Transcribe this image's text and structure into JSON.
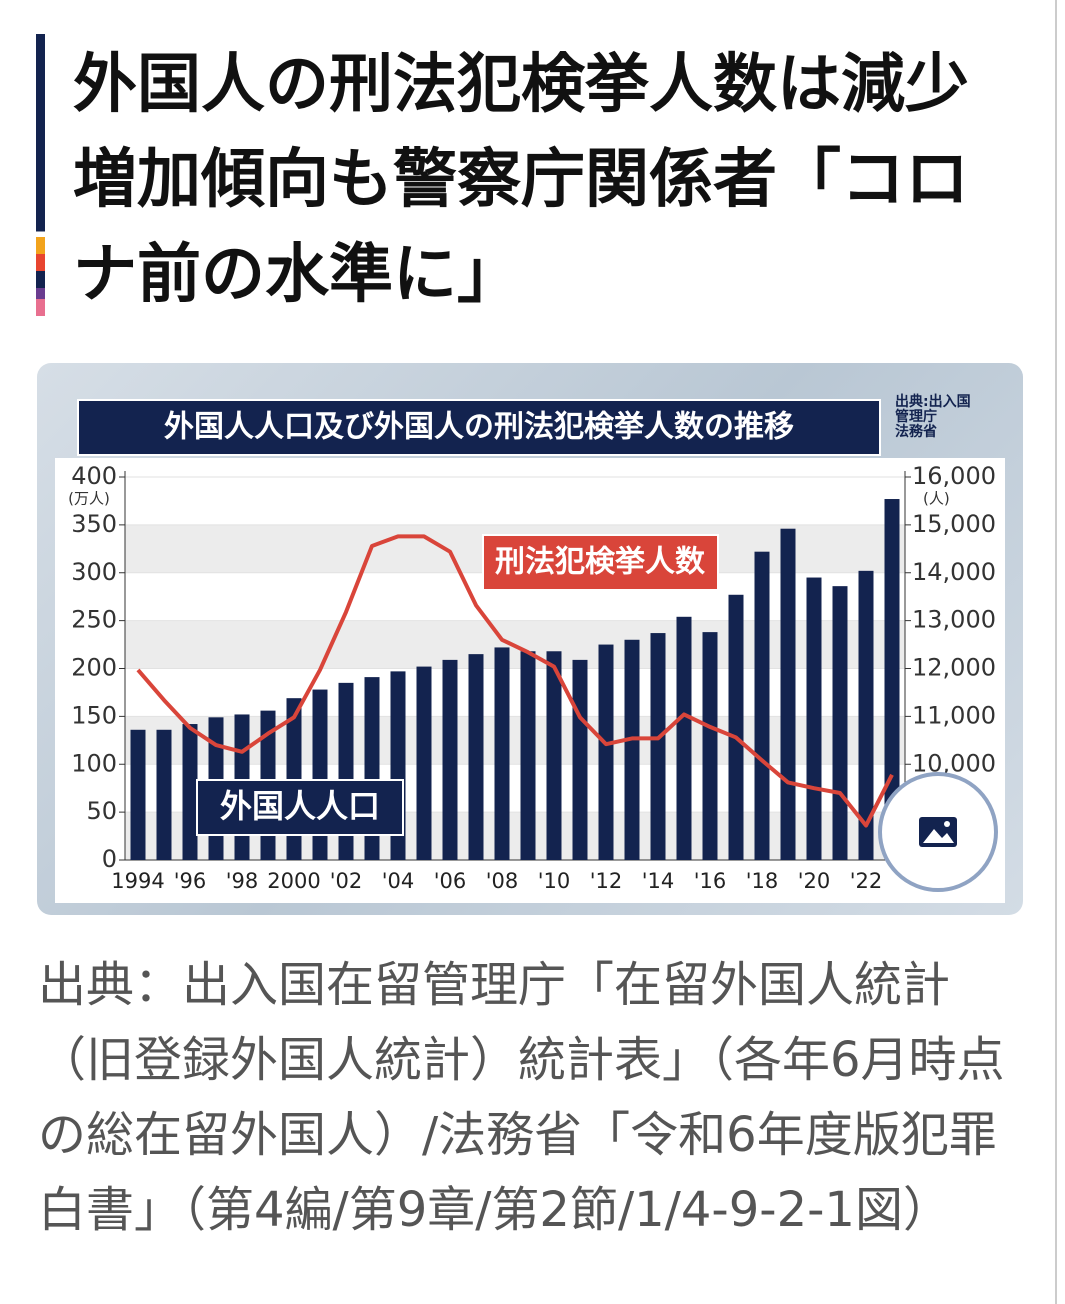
{
  "article": {
    "title": "外国人の刑法犯検挙人数は減少　増加傾向も警察庁関係者「コロナ前の水準に」",
    "caption": "出典：出入国在留管理庁「在留外国人統計（旧登録外国人統計）統計表」（各年6月時点の総在留外国人）/法務省「令和6年度版犯罪白書」（第4編/第9章/第2節/1/4-9-2-1図）"
  },
  "chart_data": {
    "type": "bar",
    "title": "外国人人口及び外国人の刑法犯検挙人数の推移",
    "source": "出典:出入国\n管理庁\n法務省",
    "y_unit": "(万人)",
    "y2_unit": "(人)",
    "categories": [
      "1994",
      null,
      "'96",
      null,
      "'98",
      null,
      "2000",
      null,
      "'02",
      null,
      "'04",
      null,
      "'06",
      null,
      "'08",
      null,
      "'10",
      null,
      "'12",
      null,
      "'14",
      null,
      "'16",
      null,
      "'18",
      null,
      "'20",
      null,
      "'22",
      null
    ],
    "series": [
      {
        "name": "外国人人口",
        "type": "bar",
        "axis": "y",
        "color": "#13234f",
        "values": [
          136,
          136,
          142,
          149,
          152,
          156,
          169,
          178,
          185,
          191,
          197,
          202,
          209,
          215,
          222,
          218,
          218,
          209,
          225,
          230,
          237,
          254,
          238,
          277,
          322,
          346,
          295,
          286,
          302,
          377
        ]
      },
      {
        "name": "刑法犯検挙人数",
        "type": "line",
        "axis": "y2",
        "color": "#d9453a",
        "values": [
          11970,
          11340,
          10760,
          10400,
          10260,
          10640,
          10980,
          11970,
          13180,
          14560,
          14760,
          14760,
          14440,
          13320,
          12600,
          12340,
          12040,
          10980,
          10420,
          10540,
          10540,
          11040,
          10780,
          10560,
          10080,
          9620,
          9500,
          9400,
          8720,
          9780
        ]
      }
    ],
    "ylim": [
      0,
      400
    ],
    "yticks": [
      0,
      50,
      100,
      150,
      200,
      250,
      300,
      350,
      400
    ],
    "y2lim": [
      8000,
      16000
    ],
    "y2ticks": [
      {
        "value": 10000,
        "label": "10,000"
      },
      {
        "value": 11000,
        "label": "11,000"
      },
      {
        "value": 12000,
        "label": "12,000"
      },
      {
        "value": 13000,
        "label": "13,000"
      },
      {
        "value": 14000,
        "label": "14,000"
      },
      {
        "value": 15000,
        "label": "15,000"
      },
      {
        "value": 16000,
        "label": "16,000"
      }
    ],
    "grid": true
  }
}
